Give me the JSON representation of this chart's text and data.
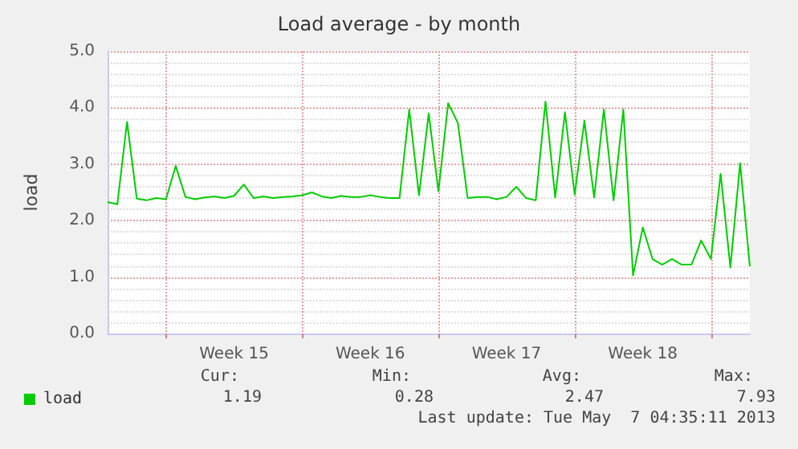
{
  "chart_data": {
    "type": "line",
    "title": "Load average - by month",
    "ylabel": "load",
    "categories": [
      null,
      null,
      null,
      null,
      null,
      null,
      null,
      null,
      null,
      null,
      null,
      null,
      null,
      "Week 15",
      null,
      null,
      null,
      null,
      null,
      null,
      null,
      null,
      null,
      null,
      null,
      null,
      null,
      "Week 16",
      null,
      null,
      null,
      null,
      null,
      null,
      null,
      null,
      null,
      null,
      null,
      null,
      null,
      "Week 17",
      null,
      null,
      null,
      null,
      null,
      null,
      null,
      null,
      null,
      null,
      null,
      null,
      null,
      "Week 18",
      null,
      null,
      null,
      null,
      null,
      null,
      null,
      null,
      null,
      null,
      null
    ],
    "series": [
      {
        "name": "load",
        "color": "#00cc00",
        "values": [
          2.33,
          2.29,
          3.75,
          2.39,
          2.36,
          2.4,
          2.38,
          2.97,
          2.42,
          2.38,
          2.41,
          2.43,
          2.4,
          2.44,
          2.64,
          2.4,
          2.43,
          2.4,
          2.42,
          2.43,
          2.45,
          2.5,
          2.43,
          2.4,
          2.44,
          2.42,
          2.42,
          2.45,
          2.42,
          2.4,
          2.4,
          3.97,
          2.45,
          3.9,
          2.52,
          4.08,
          3.73,
          2.4,
          2.42,
          2.42,
          2.38,
          2.42,
          2.6,
          2.4,
          2.36,
          4.11,
          2.41,
          3.92,
          2.46,
          3.77,
          2.41,
          3.97,
          2.36,
          3.97,
          1.03,
          1.88,
          1.32,
          1.22,
          1.32,
          1.22,
          1.22,
          1.65,
          1.32,
          2.83,
          1.17,
          3.02,
          1.19
        ]
      }
    ],
    "ylim": [
      0,
      5
    ],
    "yticks": [
      {
        "value": 0,
        "label": "0.0"
      },
      {
        "value": 1,
        "label": "1.0"
      },
      {
        "value": 2,
        "label": "2.0"
      },
      {
        "value": 3,
        "label": "3.0"
      },
      {
        "value": 4,
        "label": "4.0"
      },
      {
        "value": 5,
        "label": "5.0"
      }
    ],
    "grid": true,
    "legend": "bottom left",
    "marker": "none",
    "line_style": "solid",
    "annotations": [
      "Cur:",
      "Min:",
      "Avg:",
      "Max:",
      "1.19",
      "0.28",
      "2.47",
      "7.93",
      "Last update: Tue May  7 04:35:11 2013"
    ]
  }
}
